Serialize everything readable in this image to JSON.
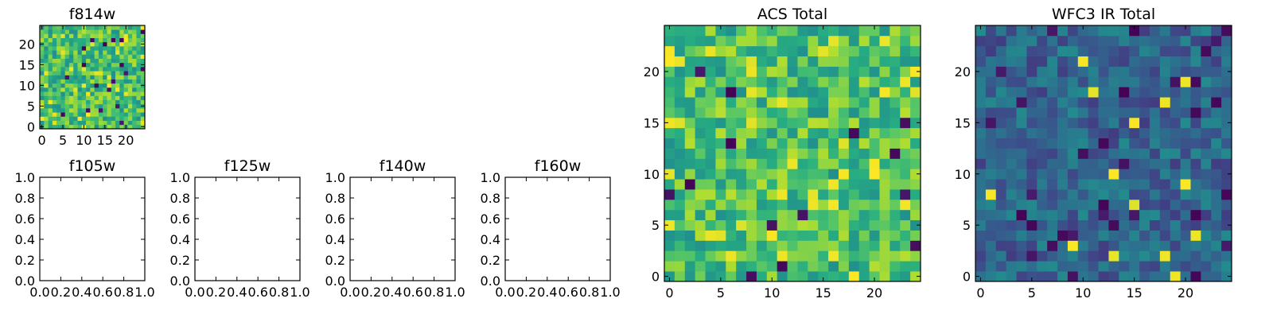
{
  "colormap": "viridis",
  "chart_data": [
    {
      "id": "f814w",
      "type": "heatmap",
      "title": "f814w",
      "grid_size": 25,
      "xlim": [
        -0.5,
        24.5
      ],
      "ylim": [
        -0.5,
        24.5
      ],
      "xticks": [
        0,
        5,
        10,
        15,
        20
      ],
      "yticks": [
        0,
        5,
        10,
        15,
        20
      ],
      "value_range": [
        0,
        1
      ],
      "seed": 814
    },
    {
      "id": "f105w",
      "type": "heatmap",
      "title": "f105w",
      "empty": true,
      "xlim": [
        0,
        1
      ],
      "ylim": [
        0,
        1
      ],
      "xticks": [
        "0.0",
        "0.2",
        "0.4",
        "0.6",
        "0.8",
        "1.0"
      ],
      "yticks": [
        "0.0",
        "0.2",
        "0.4",
        "0.6",
        "0.8",
        "1.0"
      ]
    },
    {
      "id": "f125w",
      "type": "heatmap",
      "title": "f125w",
      "empty": true,
      "xlim": [
        0,
        1
      ],
      "ylim": [
        0,
        1
      ],
      "xticks": [
        "0.0",
        "0.2",
        "0.4",
        "0.6",
        "0.8",
        "1.0"
      ],
      "yticks": [
        "0.0",
        "0.2",
        "0.4",
        "0.6",
        "0.8",
        "1.0"
      ]
    },
    {
      "id": "f140w",
      "type": "heatmap",
      "title": "f140w",
      "empty": true,
      "xlim": [
        0,
        1
      ],
      "ylim": [
        0,
        1
      ],
      "xticks": [
        "0.0",
        "0.2",
        "0.4",
        "0.6",
        "0.8",
        "1.0"
      ],
      "yticks": [
        "0.0",
        "0.2",
        "0.4",
        "0.6",
        "0.8",
        "1.0"
      ]
    },
    {
      "id": "f160w",
      "type": "heatmap",
      "title": "f160w",
      "empty": true,
      "xlim": [
        0,
        1
      ],
      "ylim": [
        0,
        1
      ],
      "xticks": [
        "0.0",
        "0.2",
        "0.4",
        "0.6",
        "0.8",
        "1.0"
      ],
      "yticks": [
        "0.0",
        "0.2",
        "0.4",
        "0.6",
        "0.8",
        "1.0"
      ]
    },
    {
      "id": "acs-total",
      "type": "heatmap",
      "title": "ACS Total",
      "grid_size": 25,
      "xlim": [
        -0.5,
        24.5
      ],
      "ylim": [
        -0.5,
        24.5
      ],
      "xticks": [
        0,
        5,
        10,
        15,
        20
      ],
      "yticks": [
        0,
        5,
        10,
        15,
        20
      ],
      "value_range": [
        0,
        1
      ],
      "seed": 1001
    },
    {
      "id": "wfc3-ir-total",
      "type": "heatmap",
      "title": "WFC3 IR Total",
      "grid_size": 25,
      "xlim": [
        -0.5,
        24.5
      ],
      "ylim": [
        -0.5,
        24.5
      ],
      "xticks": [
        0,
        5,
        10,
        15,
        20
      ],
      "yticks": [
        0,
        5,
        10,
        15,
        20
      ],
      "value_range": [
        0,
        1
      ],
      "seed": 3003
    }
  ]
}
